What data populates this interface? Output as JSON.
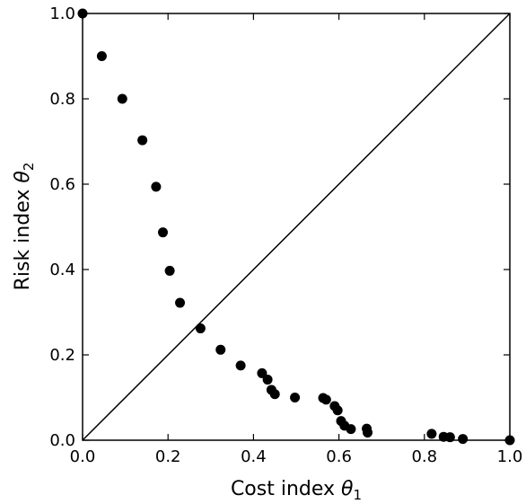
{
  "chart_data": {
    "type": "scatter",
    "xlabel": "Cost index",
    "xlabel_symbol": "θ",
    "xlabel_subscript": "1",
    "ylabel": "Risk index",
    "ylabel_symbol": "θ",
    "ylabel_subscript": "2",
    "xlim": [
      0,
      1
    ],
    "ylim": [
      0,
      1
    ],
    "xticks": [
      "0.0",
      "0.2",
      "0.4",
      "0.6",
      "0.8",
      "1.0"
    ],
    "yticks": [
      "0.0",
      "0.2",
      "0.4",
      "0.6",
      "0.8",
      "1.0"
    ],
    "grid": false,
    "reference_line": {
      "from": [
        0,
        0
      ],
      "to": [
        1,
        1
      ],
      "color": "#000000"
    },
    "point_color": "#000000",
    "points": [
      [
        0.0,
        1.0
      ],
      [
        0.045,
        0.9
      ],
      [
        0.093,
        0.8
      ],
      [
        0.14,
        0.703
      ],
      [
        0.172,
        0.594
      ],
      [
        0.188,
        0.487
      ],
      [
        0.204,
        0.397
      ],
      [
        0.228,
        0.322
      ],
      [
        0.276,
        0.262
      ],
      [
        0.323,
        0.212
      ],
      [
        0.37,
        0.175
      ],
      [
        0.42,
        0.157
      ],
      [
        0.433,
        0.142
      ],
      [
        0.442,
        0.118
      ],
      [
        0.45,
        0.108
      ],
      [
        0.497,
        0.1
      ],
      [
        0.563,
        0.099
      ],
      [
        0.57,
        0.095
      ],
      [
        0.59,
        0.08
      ],
      [
        0.597,
        0.07
      ],
      [
        0.605,
        0.045
      ],
      [
        0.613,
        0.034
      ],
      [
        0.628,
        0.026
      ],
      [
        0.665,
        0.027
      ],
      [
        0.667,
        0.018
      ],
      [
        0.817,
        0.015
      ],
      [
        0.845,
        0.008
      ],
      [
        0.86,
        0.007
      ],
      [
        0.89,
        0.003
      ],
      [
        1.0,
        0.0
      ]
    ]
  }
}
